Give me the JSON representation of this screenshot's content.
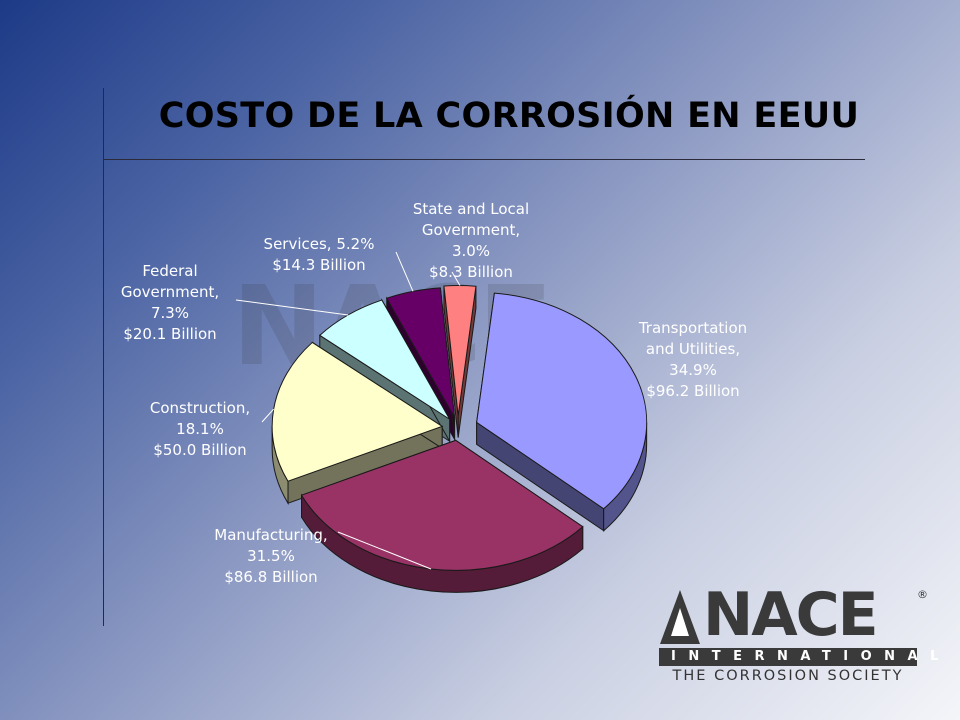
{
  "slide": {
    "title": "COSTO DE LA CORROSIÓN EN EEUU"
  },
  "chart_data": {
    "type": "pie",
    "title": "",
    "slices": [
      {
        "name": "Transportation and Utilities",
        "percent": 34.9,
        "value_text": "$96.2 Billion",
        "value": 96.2,
        "color": "#9999ff"
      },
      {
        "name": "Manufacturing",
        "percent": 31.5,
        "value_text": "$86.8 Billion",
        "value": 86.8,
        "color": "#993366"
      },
      {
        "name": "Construction",
        "percent": 18.1,
        "value_text": "$50.0 Billion",
        "value": 50.0,
        "color": "#ffffcc"
      },
      {
        "name": "Federal Government",
        "percent": 7.3,
        "value_text": "$20.1 Billion",
        "value": 20.1,
        "color": "#ccffff"
      },
      {
        "name": "Services",
        "percent": 5.2,
        "value_text": "$14.3 Billion",
        "value": 14.3,
        "color": "#660066"
      },
      {
        "name": "State and Local Government",
        "percent": 3.0,
        "value_text": "$8.3 Billion",
        "value": 8.3,
        "color": "#ff8080"
      }
    ],
    "labels": [
      {
        "lines": [
          "Transportation",
          "and Utilities,",
          "34.9%",
          "$96.2 Billion"
        ]
      },
      {
        "lines": [
          "Manufacturing,",
          "31.5%",
          "$86.8 Billion"
        ]
      },
      {
        "lines": [
          "Construction,",
          "18.1%",
          "$50.0 Billion"
        ]
      },
      {
        "lines": [
          "Federal",
          "Government,",
          "7.3%",
          "$20.1 Billion"
        ]
      },
      {
        "lines": [
          "Services, 5.2%",
          "$14.3 Billion"
        ]
      },
      {
        "lines": [
          "State and Local",
          "Government,",
          "3.0%",
          "$8.3 Billion"
        ]
      }
    ],
    "legend": "none",
    "style": "3d-exploded"
  },
  "logo": {
    "word": "NACE",
    "registered": "®",
    "international": "INTERNATIONAL",
    "tagline": "THE CORROSION SOCIETY"
  },
  "watermark": {
    "word": "NACE"
  }
}
